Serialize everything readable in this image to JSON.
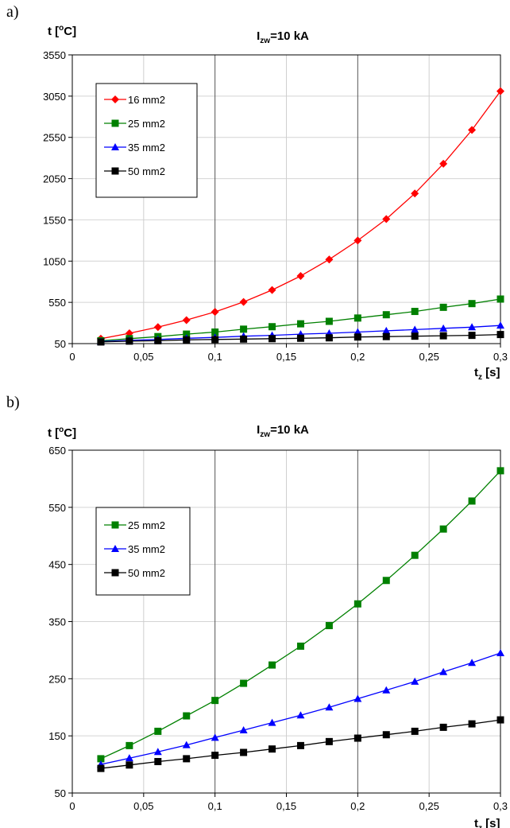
{
  "panels": [
    {
      "label": "a)"
    },
    {
      "label": "b)"
    }
  ],
  "chart_data": [
    {
      "type": "line",
      "title_main": "I",
      "title_sub": "zw",
      "title_rest": "=10 kA",
      "ylabel_main": "t [",
      "ylabel_sup": "o",
      "ylabel_rest": "C]",
      "xlabel_main": "t",
      "xlabel_sub": "z",
      "xlabel_rest": " [s]",
      "xlim": [
        0,
        0.3
      ],
      "ylim": [
        50,
        3550
      ],
      "xticks": [
        0,
        0.05,
        0.1,
        0.15,
        0.2,
        0.25,
        0.3
      ],
      "xtick_labels": [
        "0",
        "0,05",
        "0,1",
        "0,15",
        "0,2",
        "0,25",
        "0,3"
      ],
      "yticks": [
        50,
        550,
        1050,
        1550,
        2050,
        2550,
        3050,
        3550
      ],
      "ytick_labels": [
        "50",
        "550",
        "1050",
        "1550",
        "2050",
        "2550",
        "3050",
        "3550"
      ],
      "grid": true,
      "legend_position": "top-left",
      "x": [
        0.02,
        0.04,
        0.06,
        0.08,
        0.1,
        0.12,
        0.14,
        0.16,
        0.18,
        0.2,
        0.22,
        0.24,
        0.26,
        0.28,
        0.3
      ],
      "series": [
        {
          "name": "16 mm2",
          "color": "#ff0000",
          "marker": "diamond",
          "values": [
            110,
            175,
            250,
            335,
            435,
            555,
            700,
            870,
            1070,
            1300,
            1560,
            1870,
            2230,
            2640,
            3110
          ]
        },
        {
          "name": "25 mm2",
          "color": "#008000",
          "marker": "square",
          "values": [
            85,
            110,
            135,
            165,
            190,
            225,
            255,
            290,
            320,
            360,
            400,
            440,
            490,
            535,
            590
          ]
        },
        {
          "name": "35 mm2",
          "color": "#0000ff",
          "marker": "triangle",
          "values": [
            75,
            90,
            100,
            115,
            125,
            140,
            150,
            165,
            175,
            190,
            205,
            220,
            235,
            250,
            270
          ]
        },
        {
          "name": "50 mm2",
          "color": "#000000",
          "marker": "square",
          "values": [
            70,
            80,
            85,
            95,
            100,
            105,
            110,
            115,
            120,
            130,
            135,
            140,
            145,
            150,
            160
          ]
        }
      ]
    },
    {
      "type": "line",
      "title_main": "I",
      "title_sub": "zw",
      "title_rest": "=10 kA",
      "ylabel_main": "t [",
      "ylabel_sup": "o",
      "ylabel_rest": "C]",
      "xlabel_main": "t",
      "xlabel_sub": "z",
      "xlabel_rest": " [s]",
      "xlim": [
        0,
        0.3
      ],
      "ylim": [
        50,
        650
      ],
      "xticks": [
        0,
        0.05,
        0.1,
        0.15,
        0.2,
        0.25,
        0.3
      ],
      "xtick_labels": [
        "0",
        "0,05",
        "0,1",
        "0,15",
        "0,2",
        "0,25",
        "0,3"
      ],
      "yticks": [
        50,
        150,
        250,
        350,
        450,
        550,
        650
      ],
      "ytick_labels": [
        "50",
        "150",
        "250",
        "350",
        "450",
        "550",
        "650"
      ],
      "grid": true,
      "legend_position": "top-left",
      "x": [
        0.02,
        0.04,
        0.06,
        0.08,
        0.1,
        0.12,
        0.14,
        0.16,
        0.18,
        0.2,
        0.22,
        0.24,
        0.26,
        0.28,
        0.3
      ],
      "series": [
        {
          "name": "25 mm2",
          "color": "#008000",
          "marker": "square",
          "values": [
            110,
            133,
            158,
            185,
            212,
            242,
            274,
            307,
            343,
            381,
            422,
            466,
            512,
            561,
            614
          ]
        },
        {
          "name": "35 mm2",
          "color": "#0000ff",
          "marker": "triangle",
          "values": [
            100,
            111,
            122,
            134,
            147,
            160,
            173,
            186,
            200,
            215,
            230,
            245,
            262,
            278,
            295
          ]
        },
        {
          "name": "50 mm2",
          "color": "#000000",
          "marker": "square",
          "values": [
            93,
            99,
            105,
            110,
            116,
            121,
            127,
            133,
            140,
            146,
            152,
            158,
            165,
            171,
            178
          ]
        }
      ]
    }
  ]
}
